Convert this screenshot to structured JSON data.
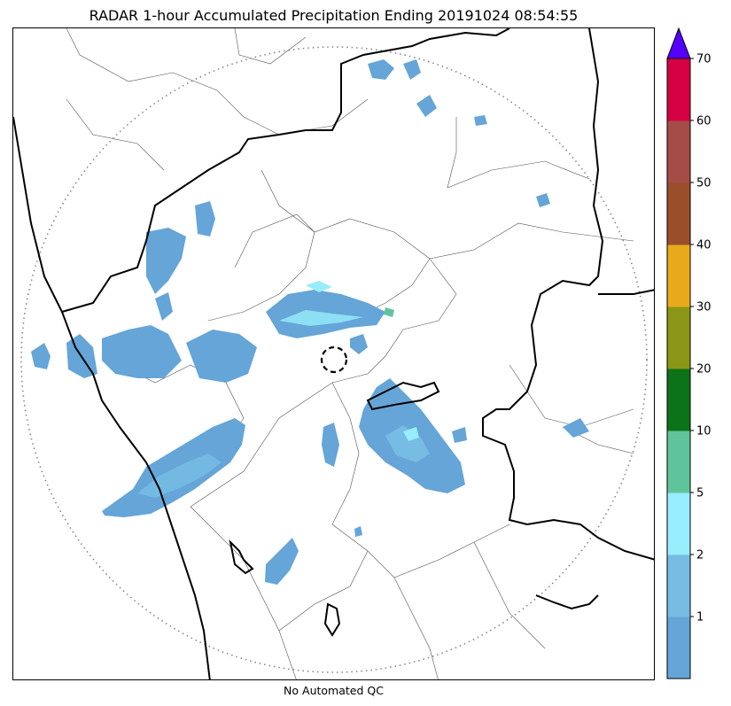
{
  "title": "RADAR 1-hour Accumulated Precipitation Ending 20191024 08:54:55",
  "footer": "No Automated QC",
  "colorbar": {
    "levels": [
      {
        "label": "",
        "color": "#65a5d8"
      },
      {
        "label": "1",
        "color": "#76bce3"
      },
      {
        "label": "2",
        "color": "#97edfb"
      },
      {
        "label": "5",
        "color": "#5fc49c"
      },
      {
        "label": "10",
        "color": "#0c7319"
      },
      {
        "label": "20",
        "color": "#8c9616"
      },
      {
        "label": "30",
        "color": "#e8aa1a"
      },
      {
        "label": "40",
        "color": "#9a4f2a"
      },
      {
        "label": "50",
        "color": "#a64c46"
      },
      {
        "label": "60",
        "color": "#d60044"
      }
    ],
    "top_label": "70",
    "extend_color": "#5500ff"
  }
}
